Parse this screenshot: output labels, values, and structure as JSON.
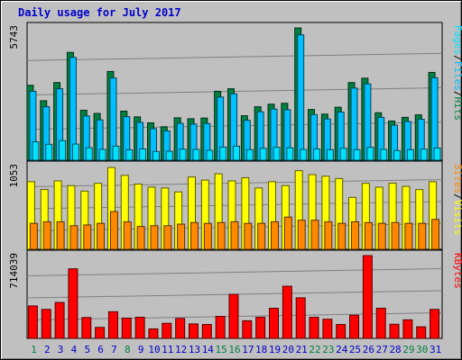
{
  "title": "Daily usage for July 2017",
  "colors": {
    "hits": "#008040",
    "files": "#00c0ff",
    "pages": "#00e0ff",
    "visits": "#ffff00",
    "sites": "#ff8800",
    "kbytes": "#ff0000",
    "weekday_label": "#0000cc",
    "weekend_label": "#008040"
  },
  "chart_data": [
    {
      "type": "bar",
      "panel": "hits-files-pages",
      "ylabel": "Pages / Files / Hits",
      "ymax_label": "5743",
      "ylim": [
        0,
        5743
      ],
      "series": [
        {
          "name": "Hits",
          "values": [
            3250,
            2580,
            3370,
            4680,
            2170,
            2030,
            3850,
            2130,
            1880,
            1620,
            1450,
            1840,
            1800,
            1830,
            2990,
            3100,
            1930,
            2320,
            2430,
            2470,
            5740,
            2200,
            2000,
            2300,
            3370,
            3560,
            2060,
            1700,
            1860,
            1970,
            3810
          ]
        },
        {
          "name": "Files",
          "values": [
            2990,
            2320,
            3100,
            4460,
            1920,
            1750,
            3570,
            1890,
            1640,
            1370,
            1270,
            1600,
            1570,
            1590,
            2740,
            2880,
            1730,
            2100,
            2220,
            2190,
            5440,
            1980,
            1790,
            2090,
            3130,
            3310,
            1860,
            1520,
            1680,
            1780,
            3580
          ]
        },
        {
          "name": "Pages",
          "values": [
            800,
            690,
            850,
            700,
            540,
            470,
            610,
            450,
            490,
            380,
            390,
            480,
            470,
            430,
            570,
            610,
            460,
            520,
            560,
            540,
            470,
            490,
            460,
            520,
            460,
            560,
            470,
            420,
            460,
            480,
            530
          ]
        }
      ]
    },
    {
      "type": "bar",
      "panel": "visits-sites",
      "ylabel": "Sites / Visits",
      "ymax_label": "1053",
      "ylim": [
        0,
        1053
      ],
      "series": [
        {
          "name": "Visits",
          "values": [
            860,
            760,
            870,
            810,
            740,
            840,
            1040,
            940,
            830,
            790,
            780,
            730,
            920,
            880,
            960,
            870,
            910,
            780,
            860,
            810,
            1000,
            950,
            930,
            900,
            660,
            840,
            790,
            840,
            800,
            760,
            860
          ]
        },
        {
          "name": "Sites",
          "values": [
            330,
            350,
            350,
            300,
            310,
            330,
            480,
            350,
            290,
            300,
            300,
            320,
            340,
            330,
            340,
            350,
            330,
            330,
            350,
            410,
            370,
            370,
            350,
            330,
            350,
            340,
            330,
            340,
            330,
            330,
            380
          ]
        }
      ]
    },
    {
      "type": "bar",
      "panel": "kbytes",
      "ylabel": "KBytes",
      "ymax_label": "714039",
      "ylim": [
        0,
        714039
      ],
      "series": [
        {
          "name": "KBytes",
          "values": [
            280000,
            250000,
            310000,
            600000,
            180000,
            95000,
            230000,
            175000,
            182000,
            82000,
            130000,
            172000,
            125000,
            120000,
            190000,
            380000,
            152000,
            182000,
            260000,
            450000,
            350000,
            182000,
            165000,
            120000,
            200000,
            714039,
            260000,
            122000,
            160000,
            100000,
            250000
          ]
        }
      ]
    }
  ],
  "x_labels": [
    "1",
    "2",
    "3",
    "4",
    "5",
    "6",
    "7",
    "8",
    "9",
    "10",
    "11",
    "12",
    "13",
    "14",
    "15",
    "16",
    "17",
    "18",
    "19",
    "20",
    "21",
    "22",
    "23",
    "24",
    "25",
    "26",
    "27",
    "28",
    "29",
    "30",
    "31"
  ],
  "weekend_days": [
    1,
    8,
    15,
    16,
    22,
    23,
    29,
    30
  ]
}
